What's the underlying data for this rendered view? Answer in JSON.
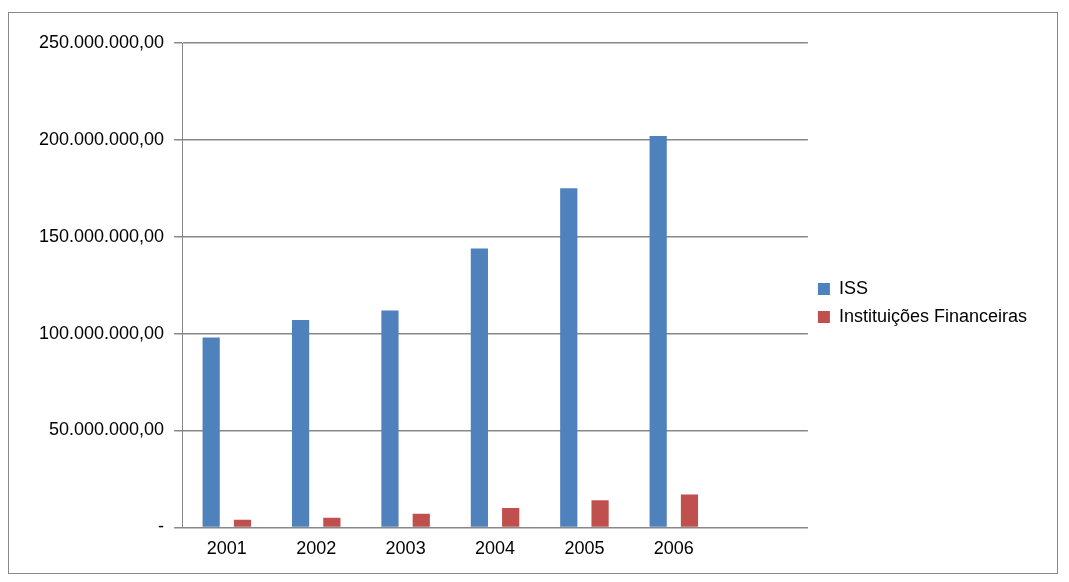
{
  "chart_data": {
    "type": "bar",
    "categories": [
      "2001",
      "2002",
      "2003",
      "2004",
      "2005",
      "2006",
      null
    ],
    "series": [
      {
        "name": "ISS",
        "color": "#4f81bd",
        "values": [
          98000000,
          107000000,
          112000000,
          144000000,
          175000000,
          202000000,
          0
        ]
      },
      {
        "name": "Instituições Financeiras",
        "color": "#c0504d",
        "values": [
          4000000,
          5000000,
          7000000,
          10000000,
          14000000,
          17000000,
          null
        ]
      }
    ],
    "ylim": [
      0,
      250000000
    ],
    "yticks": [
      {
        "value": 0,
        "label": "-"
      },
      {
        "value": 50000000,
        "label": "50.000.000,00"
      },
      {
        "value": 100000000,
        "label": "100.000.000,00"
      },
      {
        "value": 150000000,
        "label": "150.000.000,00"
      },
      {
        "value": 200000000,
        "label": "200.000.000,00"
      },
      {
        "value": 250000000,
        "label": "250.000.000,00"
      }
    ],
    "grid": "y",
    "legend": "right"
  }
}
